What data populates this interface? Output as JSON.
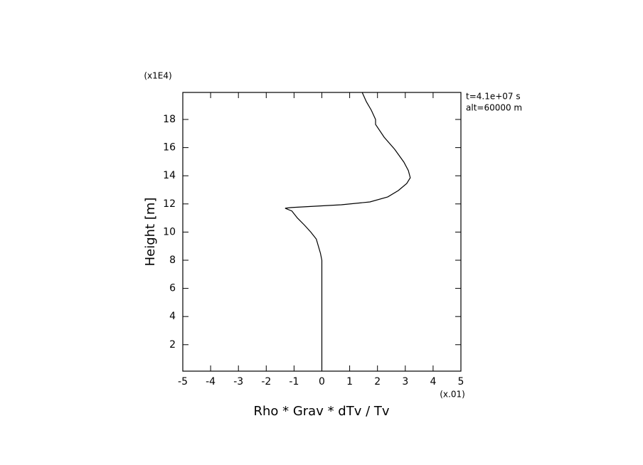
{
  "chart_data": {
    "type": "line",
    "xlabel": "Rho * Grav * dTv / Tv",
    "ylabel": "Height [m]",
    "x_multiplier": "(x.01)",
    "y_multiplier": "(x1E4)",
    "annotations": [
      "t=4.1e+07 s",
      "alt=60000 m"
    ],
    "xlim": [
      -5,
      5
    ],
    "xticks": [
      -5,
      -4,
      -3,
      -2,
      -1,
      0,
      1,
      2,
      3,
      4,
      5
    ],
    "ylim": [
      0.12,
      19.92
    ],
    "yticks": [
      2,
      4,
      6,
      8,
      10,
      12,
      14,
      16,
      18
    ],
    "x": [
      0,
      0,
      0,
      -0.05,
      -0.2,
      -0.4,
      -0.63,
      -0.88,
      -1.08,
      -1.32,
      -1.1,
      0.7,
      1.73,
      2.37,
      2.75,
      3.05,
      3.18,
      3.11,
      2.95,
      2.62,
      2.24,
      1.93,
      1.93,
      1.78,
      1.6,
      1.45
    ],
    "series": [
      {
        "color": "#000000",
        "values": [
          0.12,
          7.5,
          8.0,
          8.5,
          9.5,
          10.0,
          10.5,
          11.0,
          11.5,
          11.69,
          11.74,
          11.94,
          12.14,
          12.5,
          12.95,
          13.45,
          13.86,
          14.37,
          14.97,
          15.88,
          16.74,
          17.65,
          18.0,
          18.65,
          19.26,
          19.92
        ]
      }
    ]
  }
}
